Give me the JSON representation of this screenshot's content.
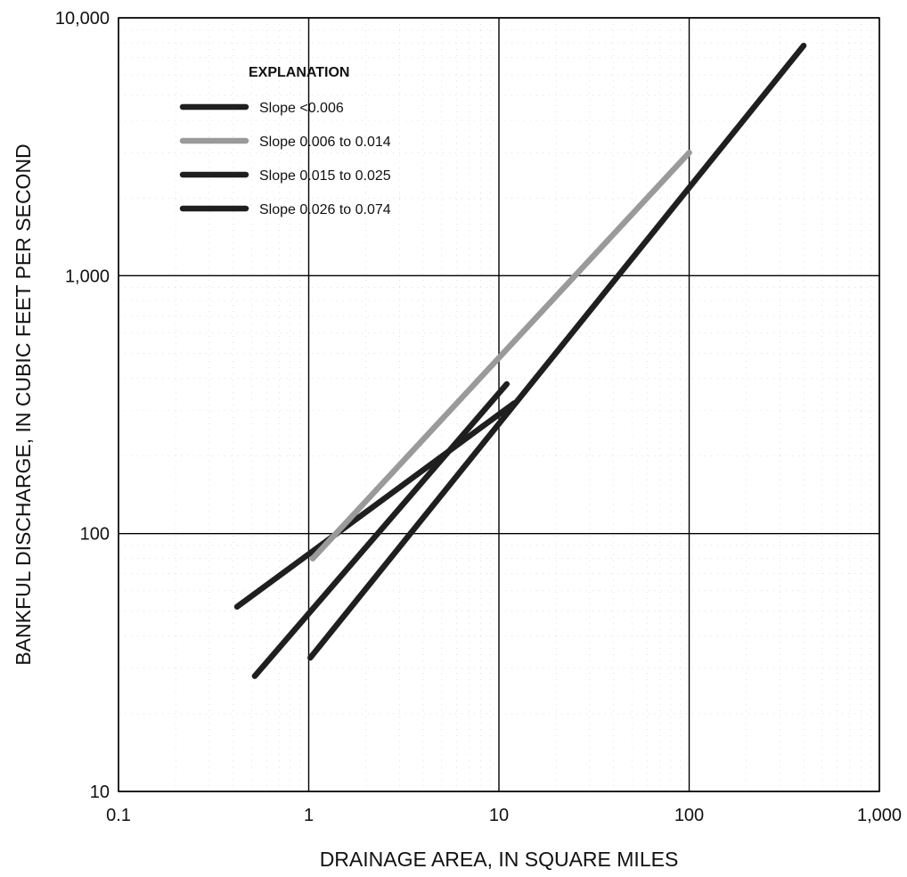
{
  "chart_data": {
    "type": "line",
    "xlabel": "DRAINAGE AREA, IN SQUARE MILES",
    "ylabel": "BANKFUL DISCHARGE, IN CUBIC FEET PER SECOND",
    "xscale": "log",
    "yscale": "log",
    "xlim": [
      0.1,
      1000
    ],
    "ylim": [
      10,
      10000
    ],
    "x_ticks": [
      0.1,
      1,
      10,
      100,
      1000
    ],
    "x_tick_labels": [
      "0.1",
      "1",
      "10",
      "100",
      "1,000"
    ],
    "y_ticks": [
      10,
      100,
      1000,
      10000
    ],
    "y_tick_labels": [
      "10",
      "100",
      "1,000",
      "10,000"
    ],
    "grid": true,
    "legend": {
      "title": "EXPLANATION",
      "placement": "top-left"
    },
    "series": [
      {
        "name": "Slope <0.006",
        "color": "#1f1f1f",
        "x": [
          0.42,
          12
        ],
        "y": [
          52,
          320
        ]
      },
      {
        "name": "Slope 0.006 to 0.014",
        "color": "#9a9a9a",
        "x": [
          1.05,
          100
        ],
        "y": [
          80,
          3000
        ]
      },
      {
        "name": "Slope 0.015 to 0.025",
        "color": "#1f1f1f",
        "x": [
          1.02,
          400
        ],
        "y": [
          33,
          7800
        ]
      },
      {
        "name": "Slope 0.026 to 0.074",
        "color": "#1f1f1f",
        "x": [
          0.52,
          11
        ],
        "y": [
          28,
          380
        ]
      }
    ]
  }
}
